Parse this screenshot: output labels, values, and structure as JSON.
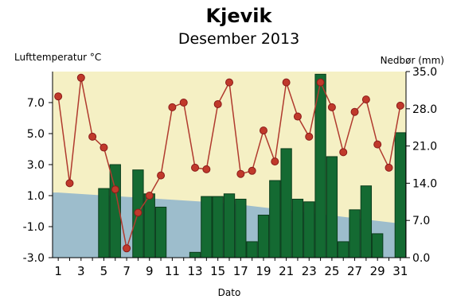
{
  "chart_data": {
    "type": "bar+line",
    "title": "Kjevik",
    "subtitle": "Desember 2013",
    "xlabel": "Dato",
    "ylabel_left": "Lufttemperatur °C",
    "ylabel_right": "Nedbør (mm)",
    "xlim": [
      1,
      31
    ],
    "x_ticks": [
      1,
      3,
      5,
      7,
      9,
      11,
      13,
      15,
      17,
      19,
      21,
      23,
      25,
      27,
      29,
      31
    ],
    "ylim_left": [
      -3.0,
      9.0
    ],
    "y_ticks_left": [
      "-3.0",
      "-1.0",
      "1.0",
      "3.0",
      "5.0",
      "7.0"
    ],
    "y_tick_values_left": [
      -3.0,
      -1.0,
      1.0,
      3.0,
      5.0,
      7.0
    ],
    "ylim_right": [
      0.0,
      35.0
    ],
    "y_ticks_right": [
      "0.0",
      "7.0",
      "14.0",
      "21.0",
      "28.0",
      "35.0"
    ],
    "y_tick_values_right": [
      0.0,
      7.0,
      14.0,
      21.0,
      28.0,
      35.0
    ],
    "days": [
      1,
      2,
      3,
      4,
      5,
      6,
      7,
      8,
      9,
      10,
      11,
      12,
      13,
      14,
      15,
      16,
      17,
      18,
      19,
      20,
      21,
      22,
      23,
      24,
      25,
      26,
      27,
      28,
      29,
      30,
      31
    ],
    "temperature": [
      7.4,
      1.8,
      8.6,
      4.8,
      4.1,
      1.4,
      -2.4,
      -0.1,
      1.0,
      2.3,
      6.7,
      7.0,
      2.8,
      2.7,
      6.9,
      8.3,
      2.4,
      2.6,
      5.2,
      3.2,
      8.3,
      6.1,
      4.8,
      8.3,
      6.7,
      3.8,
      6.4,
      7.2,
      4.3,
      2.8,
      6.8
    ],
    "precipitation": [
      0.0,
      0.0,
      0.0,
      0.0,
      13.0,
      17.5,
      0.0,
      16.5,
      12.0,
      9.5,
      0.0,
      0.0,
      1.0,
      11.5,
      11.5,
      12.0,
      11.0,
      3.0,
      8.0,
      14.5,
      20.5,
      11.0,
      10.5,
      34.5,
      19.0,
      3.0,
      9.0,
      13.5,
      4.5,
      0.0,
      23.5
    ],
    "normal_temperature": [
      1.2,
      0.5,
      -0.8
    ],
    "normal_temperature_days": [
      1,
      16,
      31
    ],
    "colors": {
      "plot_background": "#f5f0c4",
      "normal_band": "#9dbdcc",
      "bar_fill": "#146a32",
      "bar_edge": "#0b3d1c",
      "line": "#b03a2e",
      "marker": "#c0392b",
      "marker_edge": "#8b1a1a",
      "axis": "#000000"
    }
  }
}
